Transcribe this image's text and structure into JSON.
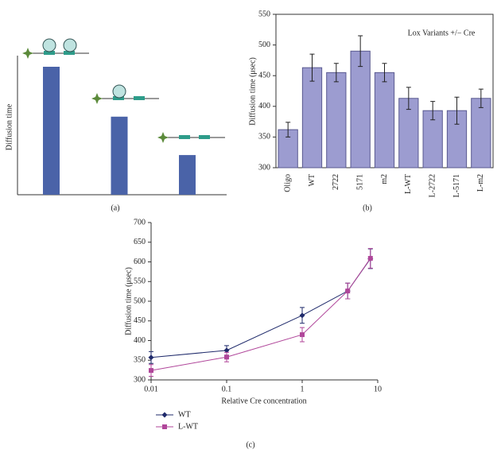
{
  "chart_data": [
    {
      "type": "bar",
      "label": "(a)",
      "ylabel": "Diffusion time",
      "categories": [
        null,
        null,
        null
      ],
      "values": [
        100,
        61,
        31
      ],
      "color": "#4a63a8"
    },
    {
      "type": "bar",
      "label": "(b)",
      "annotation": "Lox Variants +/− Cre",
      "ylabel": "Diffusion time (μsec)",
      "categories": [
        "Oligo",
        "WT",
        "2722",
        "5171",
        "m2",
        "L-WT",
        "L-2722",
        "L-5171",
        "L-m2"
      ],
      "values": [
        362,
        463,
        455,
        490,
        455,
        413,
        393,
        393,
        413
      ],
      "errors": [
        12,
        22,
        15,
        25,
        15,
        18,
        15,
        22,
        15
      ],
      "color": "#9c9cd0",
      "ylim": [
        300,
        550
      ],
      "yticks": [
        300,
        350,
        400,
        450,
        500,
        550
      ]
    },
    {
      "type": "line",
      "label": "(c)",
      "xlabel": "Relative Cre concentration",
      "ylabel": "Diffusion time (μsec)",
      "log_x": true,
      "x": [
        0.01,
        0.1,
        1,
        4,
        8
      ],
      "series": [
        {
          "name": "WT",
          "color": "#1f2a6b",
          "marker": "diamond",
          "values": [
            357,
            375,
            464,
            526,
            608
          ],
          "errors": [
            15,
            12,
            20,
            20,
            25
          ]
        },
        {
          "name": "L-WT",
          "color": "#b0469a",
          "marker": "square",
          "values": [
            324,
            358,
            415,
            526,
            609
          ],
          "errors": [
            15,
            12,
            18,
            20,
            25
          ]
        }
      ],
      "xlim": [
        0.01,
        10
      ],
      "xticks": [
        0.01,
        0.1,
        1,
        10
      ],
      "ylim": [
        300,
        700
      ],
      "yticks": [
        300,
        350,
        400,
        450,
        500,
        550,
        600,
        650,
        700
      ]
    }
  ]
}
